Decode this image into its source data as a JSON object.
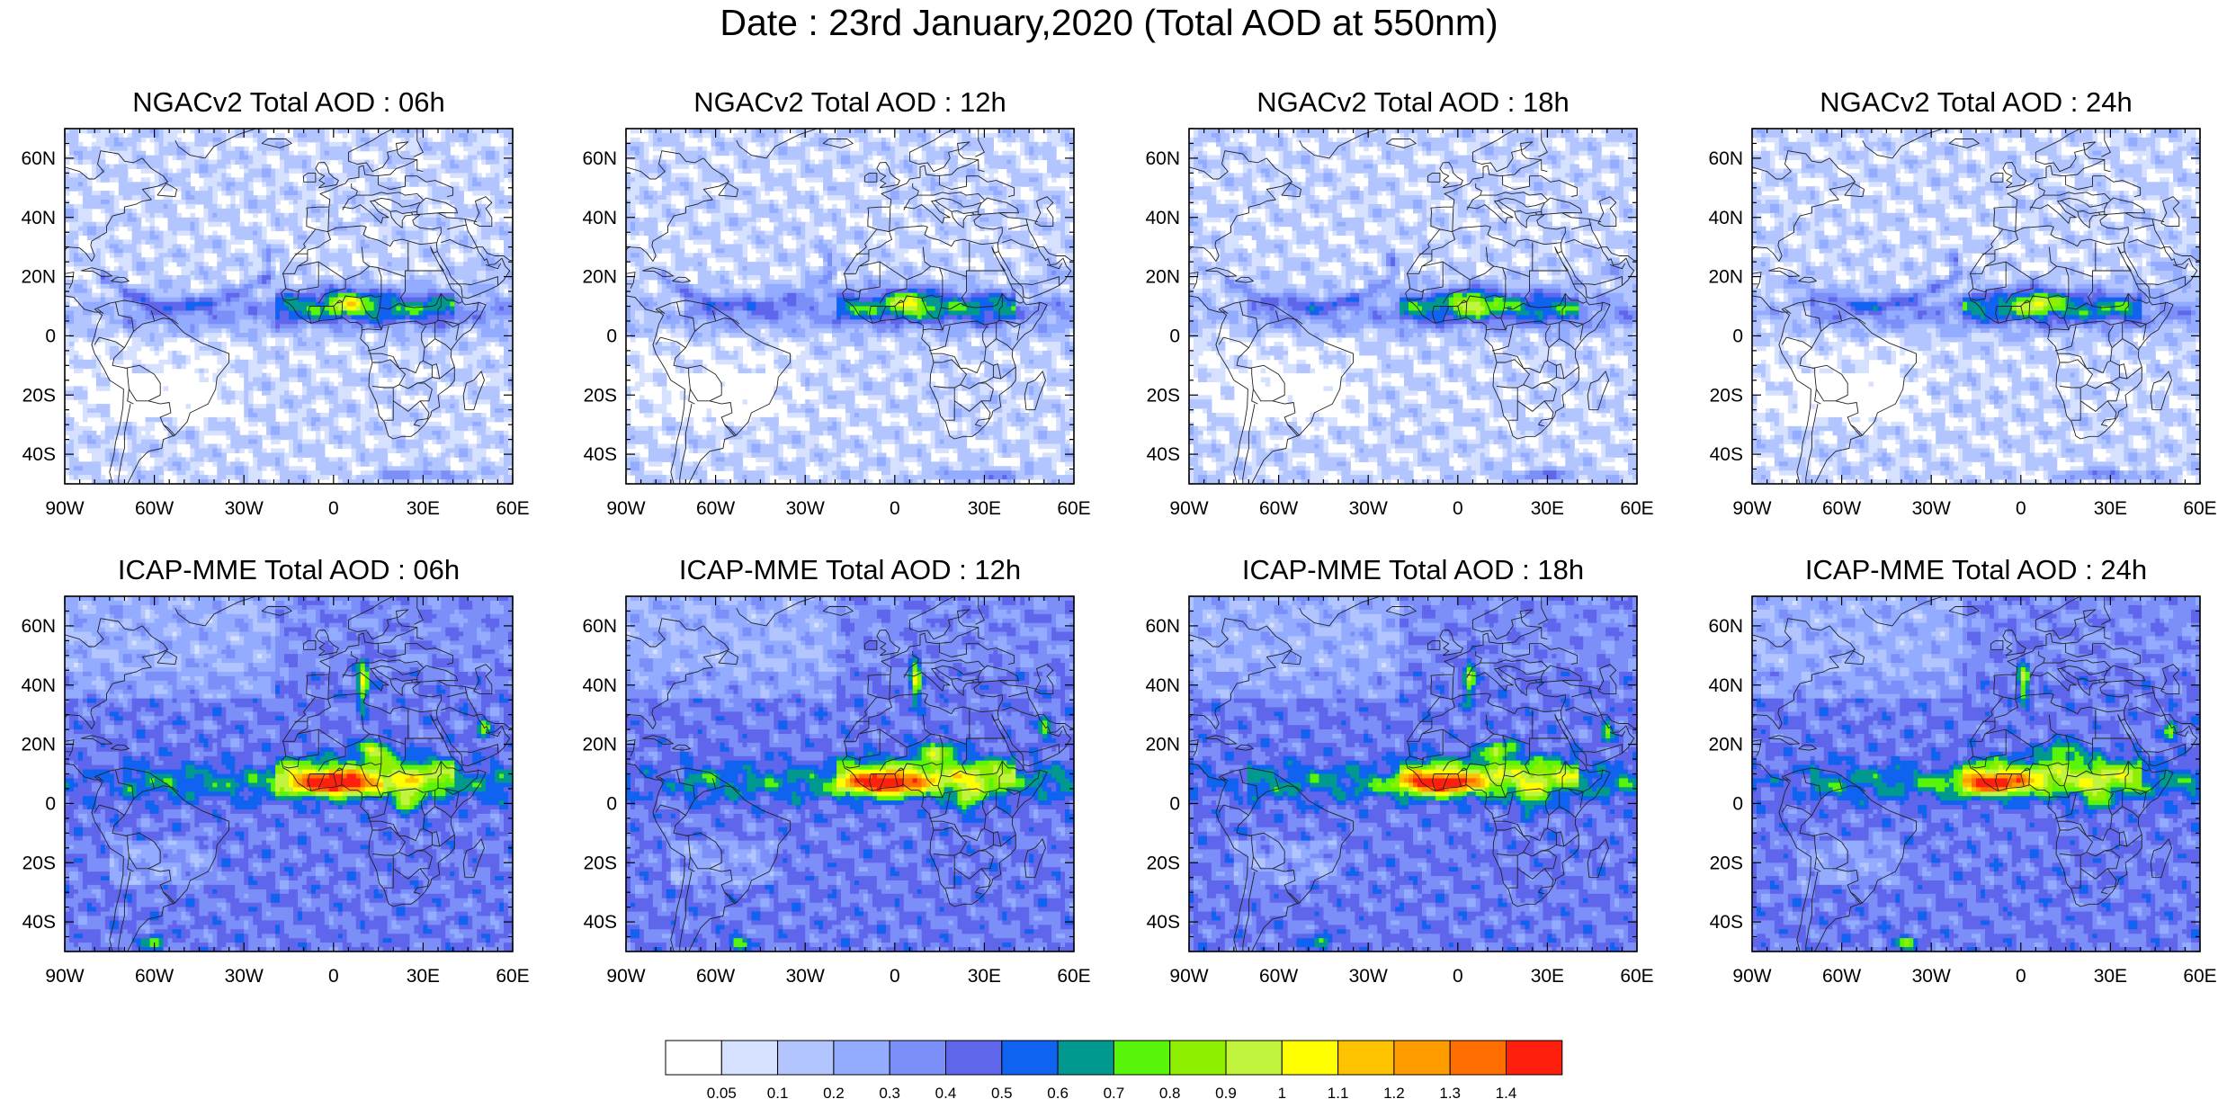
{
  "figure": {
    "title": "Date : 23rd January,2020 (Total AOD at 550nm)"
  },
  "map": {
    "lon_range": [
      -90,
      60
    ],
    "lat_range": [
      -50,
      70
    ],
    "lon_ticks": [
      "90W",
      "60W",
      "30W",
      "0",
      "30E",
      "60E"
    ],
    "lat_ticks": [
      "60N",
      "40N",
      "20N",
      "0",
      "20S",
      "40S"
    ],
    "panels": [
      {
        "title": "NGACv2 Total AOD : 06h",
        "model": "NGACv2",
        "lead": "06h"
      },
      {
        "title": "NGACv2 Total AOD : 12h",
        "model": "NGACv2",
        "lead": "12h"
      },
      {
        "title": "NGACv2 Total AOD : 18h",
        "model": "NGACv2",
        "lead": "18h"
      },
      {
        "title": "NGACv2 Total AOD : 24h",
        "model": "NGACv2",
        "lead": "24h"
      },
      {
        "title": "ICAP-MME Total AOD : 06h",
        "model": "ICAP-MME",
        "lead": "06h"
      },
      {
        "title": "ICAP-MME Total AOD : 12h",
        "model": "ICAP-MME",
        "lead": "12h"
      },
      {
        "title": "ICAP-MME Total AOD : 18h",
        "model": "ICAP-MME",
        "lead": "18h"
      },
      {
        "title": "ICAP-MME Total AOD : 24h",
        "model": "ICAP-MME",
        "lead": "24h"
      }
    ]
  },
  "colorbar": {
    "labels": [
      "0.05",
      "0.1",
      "0.2",
      "0.3",
      "0.4",
      "0.5",
      "0.6",
      "0.7",
      "0.8",
      "0.9",
      "1",
      "1.1",
      "1.2",
      "1.3",
      "1.4"
    ],
    "colors": [
      "#ffffff",
      "#d6e0ff",
      "#b3c5ff",
      "#94acff",
      "#7c8ff8",
      "#5f66ec",
      "#1062f0",
      "#00988f",
      "#58f50a",
      "#8ef000",
      "#c0f43d",
      "#ffff00",
      "#ffc200",
      "#ff9d00",
      "#ff6e00",
      "#ff1f0d"
    ]
  }
}
